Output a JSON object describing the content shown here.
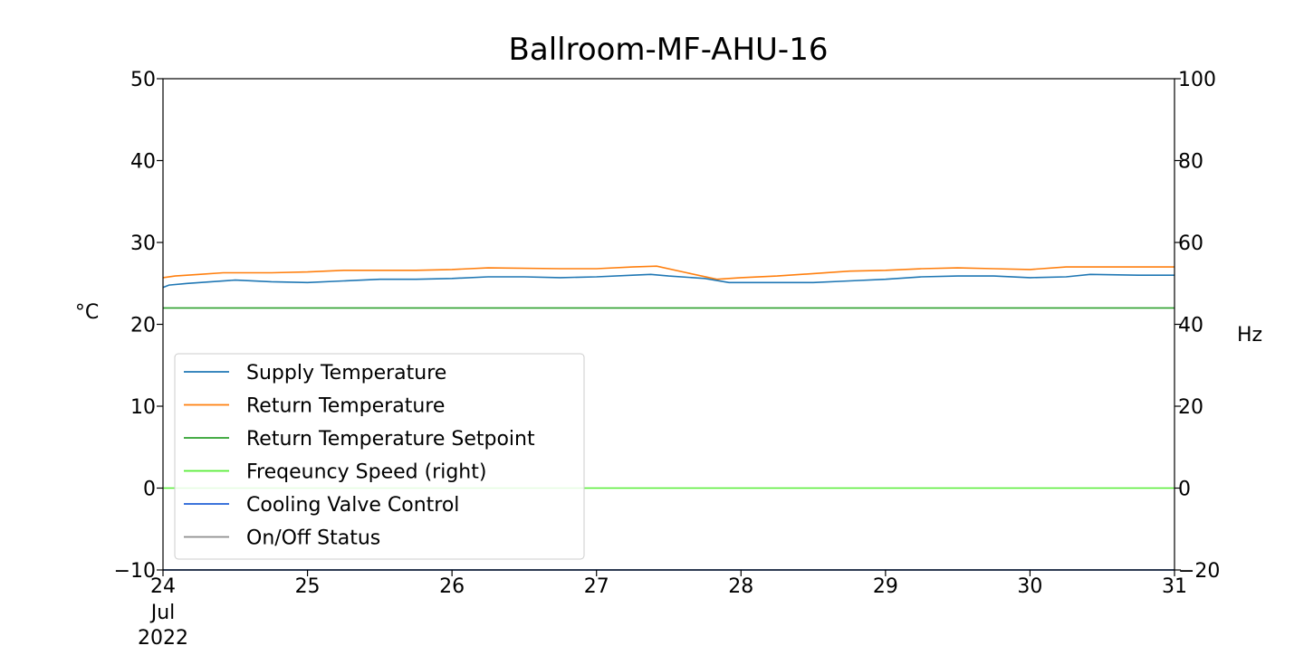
{
  "chart_data": {
    "type": "line",
    "title": "Ballroom-MF-AHU-16",
    "ylabel_left": "°C",
    "ylabel_right": "Hz",
    "x_axis": {
      "type": "date",
      "range": [
        "2022-07-24",
        "2022-07-31"
      ],
      "ticks": [
        {
          "date": "2022-07-24",
          "label": "24",
          "sub1": "Jul",
          "sub2": "2022"
        },
        {
          "date": "2022-07-25",
          "label": "25"
        },
        {
          "date": "2022-07-26",
          "label": "26"
        },
        {
          "date": "2022-07-27",
          "label": "27"
        },
        {
          "date": "2022-07-28",
          "label": "28"
        },
        {
          "date": "2022-07-29",
          "label": "29"
        },
        {
          "date": "2022-07-30",
          "label": "30"
        },
        {
          "date": "2022-07-31",
          "label": "31"
        }
      ]
    },
    "y_left": {
      "range": [
        -10,
        50
      ],
      "ticks": [
        {
          "value": -10,
          "label": "−10"
        },
        {
          "value": 0,
          "label": "0"
        },
        {
          "value": 10,
          "label": "10"
        },
        {
          "value": 20,
          "label": "20"
        },
        {
          "value": 30,
          "label": "30"
        },
        {
          "value": 40,
          "label": "40"
        },
        {
          "value": 50,
          "label": "50"
        }
      ]
    },
    "y_right": {
      "range": [
        -20,
        100
      ],
      "ticks": [
        {
          "value": -20,
          "label": "−20"
        },
        {
          "value": 0,
          "label": "0"
        },
        {
          "value": 20,
          "label": "20"
        },
        {
          "value": 40,
          "label": "40"
        },
        {
          "value": 60,
          "label": "60"
        },
        {
          "value": 80,
          "label": "80"
        },
        {
          "value": 100,
          "label": "100"
        }
      ]
    },
    "grid": false,
    "legend_position": "lower-left",
    "series": [
      {
        "name": "Supply Temperature",
        "color": "#1f77b4",
        "axis": "left",
        "points": [
          [
            "2022-07-24 00:00",
            24.5
          ],
          [
            "2022-07-24 01:00",
            24.8
          ],
          [
            "2022-07-24 04:00",
            25.0
          ],
          [
            "2022-07-24 08:00",
            25.2
          ],
          [
            "2022-07-24 12:00",
            25.4
          ],
          [
            "2022-07-24 18:00",
            25.2
          ],
          [
            "2022-07-25 00:00",
            25.1
          ],
          [
            "2022-07-25 06:00",
            25.3
          ],
          [
            "2022-07-25 12:00",
            25.5
          ],
          [
            "2022-07-25 18:00",
            25.5
          ],
          [
            "2022-07-26 00:00",
            25.6
          ],
          [
            "2022-07-26 06:00",
            25.8
          ],
          [
            "2022-07-26 12:00",
            25.8
          ],
          [
            "2022-07-26 18:00",
            25.7
          ],
          [
            "2022-07-27 00:00",
            25.8
          ],
          [
            "2022-07-27 06:00",
            26.0
          ],
          [
            "2022-07-27 09:00",
            26.1
          ],
          [
            "2022-07-27 12:00",
            25.9
          ],
          [
            "2022-07-27 18:00",
            25.6
          ],
          [
            "2022-07-27 22:00",
            25.1
          ],
          [
            "2022-07-28 06:00",
            25.1
          ],
          [
            "2022-07-28 12:00",
            25.1
          ],
          [
            "2022-07-28 18:00",
            25.3
          ],
          [
            "2022-07-29 00:00",
            25.5
          ],
          [
            "2022-07-29 06:00",
            25.8
          ],
          [
            "2022-07-29 12:00",
            25.9
          ],
          [
            "2022-07-29 18:00",
            25.9
          ],
          [
            "2022-07-30 00:00",
            25.7
          ],
          [
            "2022-07-30 06:00",
            25.8
          ],
          [
            "2022-07-30 10:00",
            26.1
          ],
          [
            "2022-07-30 18:00",
            26.0
          ],
          [
            "2022-07-31 00:00",
            26.0
          ]
        ]
      },
      {
        "name": "Return Temperature",
        "color": "#ff7f0e",
        "axis": "left",
        "points": [
          [
            "2022-07-24 00:00",
            25.7
          ],
          [
            "2022-07-24 02:00",
            25.9
          ],
          [
            "2022-07-24 06:00",
            26.1
          ],
          [
            "2022-07-24 10:00",
            26.3
          ],
          [
            "2022-07-24 18:00",
            26.3
          ],
          [
            "2022-07-25 00:00",
            26.4
          ],
          [
            "2022-07-25 06:00",
            26.6
          ],
          [
            "2022-07-25 18:00",
            26.6
          ],
          [
            "2022-07-26 00:00",
            26.7
          ],
          [
            "2022-07-26 06:00",
            26.9
          ],
          [
            "2022-07-26 18:00",
            26.8
          ],
          [
            "2022-07-27 00:00",
            26.8
          ],
          [
            "2022-07-27 06:00",
            27.0
          ],
          [
            "2022-07-27 10:00",
            27.1
          ],
          [
            "2022-07-27 15:00",
            26.3
          ],
          [
            "2022-07-27 20:00",
            25.5
          ],
          [
            "2022-07-28 00:00",
            25.7
          ],
          [
            "2022-07-28 06:00",
            25.9
          ],
          [
            "2022-07-28 12:00",
            26.2
          ],
          [
            "2022-07-28 18:00",
            26.5
          ],
          [
            "2022-07-29 00:00",
            26.6
          ],
          [
            "2022-07-29 06:00",
            26.8
          ],
          [
            "2022-07-29 12:00",
            26.9
          ],
          [
            "2022-07-29 18:00",
            26.8
          ],
          [
            "2022-07-30 00:00",
            26.7
          ],
          [
            "2022-07-30 06:00",
            27.0
          ],
          [
            "2022-07-30 18:00",
            27.0
          ],
          [
            "2022-07-31 00:00",
            27.0
          ]
        ]
      },
      {
        "name": "Return Temperature Setpoint",
        "color": "#2ca02c",
        "axis": "left",
        "points": [
          [
            "2022-07-24 00:00",
            22
          ],
          [
            "2022-07-31 00:00",
            22
          ]
        ]
      },
      {
        "name": "Freqeuncy Speed (right)",
        "color": "#55ee33",
        "axis": "right",
        "points": [
          [
            "2022-07-24 00:00",
            0
          ],
          [
            "2022-07-31 00:00",
            0
          ]
        ]
      },
      {
        "name": "Cooling Valve Control",
        "color": "#1f5fd6",
        "axis": "left",
        "points": [
          [
            "2022-07-24 00:00",
            -10
          ],
          [
            "2022-07-31 00:00",
            -10
          ]
        ]
      },
      {
        "name": "On/Off Status",
        "color": "#8c8c8c",
        "axis": "left",
        "points": [
          [
            "2022-07-24 00:00",
            -10
          ],
          [
            "2022-07-31 00:00",
            -10
          ]
        ]
      }
    ]
  }
}
